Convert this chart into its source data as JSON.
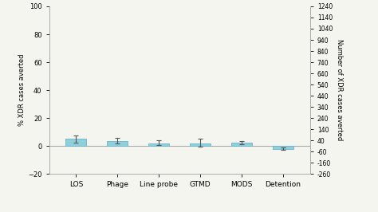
{
  "categories": [
    "LOS",
    "Phage",
    "Line probe",
    "GTMD",
    "MODS",
    "Detention"
  ],
  "bar_values": [
    5.0,
    3.5,
    1.5,
    2.0,
    2.5,
    -2.0
  ],
  "error_low": [
    2.5,
    1.5,
    0.5,
    -0.5,
    1.0,
    -3.0
  ],
  "error_high": [
    7.5,
    5.5,
    4.0,
    5.0,
    3.5,
    -1.0
  ],
  "bar_color": "#8ecfdc",
  "bar_edge_color": "#6ab5c8",
  "error_color": "#555555",
  "ylim_left": [
    -20,
    100
  ],
  "yticks_left": [
    -20,
    0,
    20,
    40,
    60,
    80,
    100
  ],
  "ylim_right": [
    -260,
    1240
  ],
  "yticks_right": [
    -260,
    -160,
    -60,
    40,
    140,
    240,
    340,
    440,
    540,
    640,
    740,
    840,
    940,
    1040,
    1140,
    1240
  ],
  "ylabel_left": "% XDR cases averted",
  "ylabel_right": "Number of XDR cases averted",
  "scale_factor": 12.4,
  "bar_width": 0.5,
  "background_color": "#f5f5f0",
  "spine_color": "#aaaaaa"
}
